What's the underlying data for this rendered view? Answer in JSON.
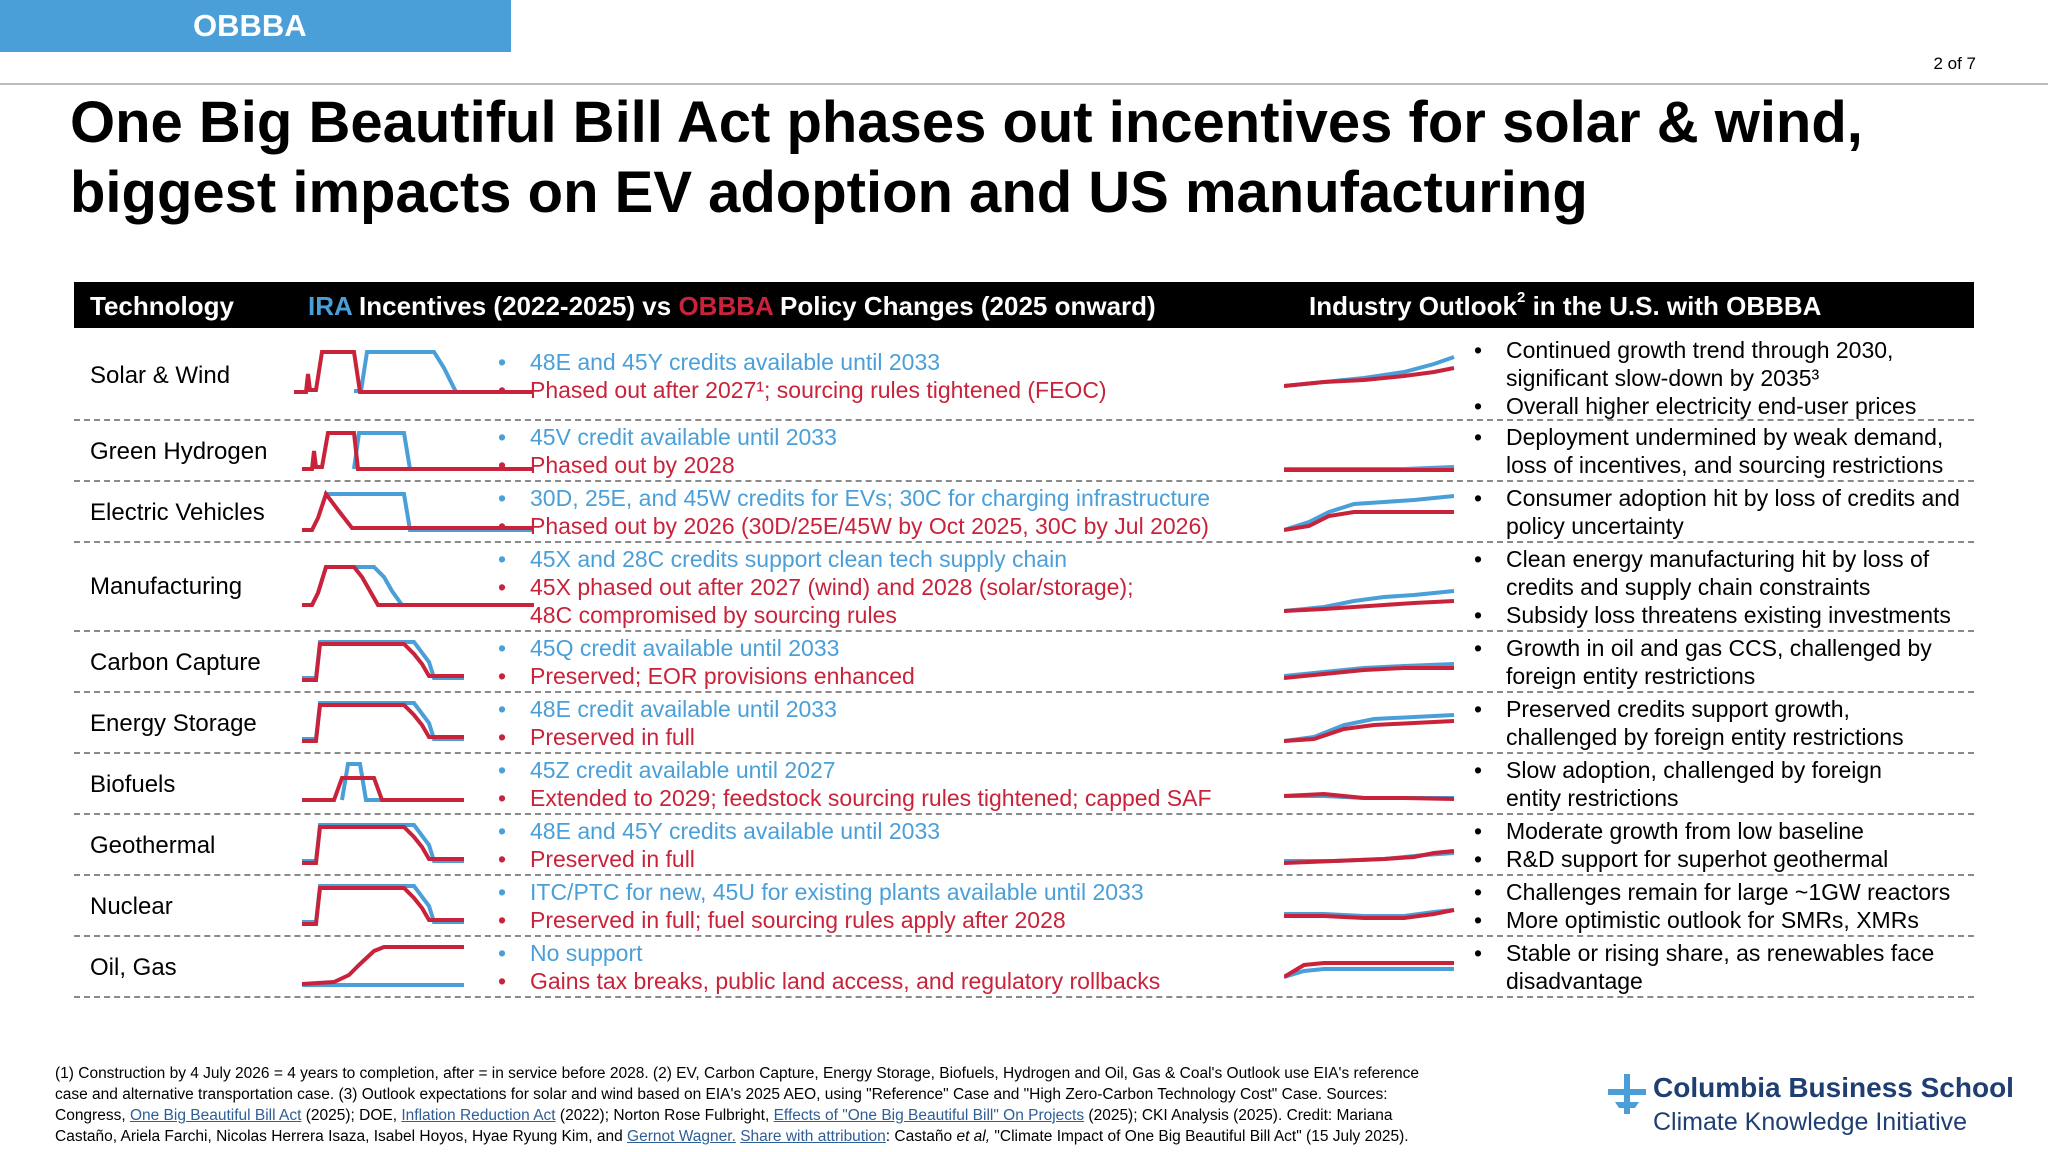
{
  "section_tag": "OBBBA",
  "page_number": "2 of 7",
  "title_line1": "One Big Beautiful Bill Act phases out incentives for solar & wind,",
  "title_line2": "biggest impacts on EV adoption and US manufacturing",
  "header": {
    "technology": "Technology",
    "ira": "IRA",
    "incentives": " Incentives (2022-2025) vs ",
    "obbba": "OBBBA",
    "policy_changes": " Policy Changes (2025 onward)",
    "outlook_pre": "Industry Outlook",
    "outlook_sup": "2",
    "outlook_post": " in the U.S. with OBBBA"
  },
  "colors": {
    "ira_blue": "#4a9fd8",
    "obbba_red": "#c8233a",
    "header_bg": "#000000",
    "tag_bg": "#4a9fd8",
    "logo_navy": "#1f3f73"
  },
  "bullet": "•",
  "rows": [
    {
      "tech": "Solar & Wind",
      "ira": "48E and 45Y credits available until 2033",
      "obbba": "Phased out after 2027¹; sourcing rules tightened (FEOC)",
      "outlook": [
        "Continued growth trend through 2030,",
        "significant slow-down by 2035³",
        "Overall higher electricity end-user prices"
      ]
    },
    {
      "tech": "Green Hydrogen",
      "ira": "45V credit available until 2033",
      "obbba": "Phased out by 2028",
      "outlook": [
        "Deployment undermined by weak demand,",
        "loss of incentives, and sourcing restrictions"
      ]
    },
    {
      "tech": "Electric Vehicles",
      "ira": "30D, 25E, and 45W credits for EVs; 30C for charging infrastructure",
      "obbba": "Phased out by 2026 (30D/25E/45W by Oct 2025, 30C by Jul 2026)",
      "outlook": [
        "Consumer adoption hit by loss of credits and",
        "policy uncertainty"
      ]
    },
    {
      "tech": "Manufacturing",
      "ira": "45X and 28C credits support clean tech supply chain",
      "obbba": "45X phased out after 2027 (wind) and 2028 (solar/storage);",
      "obbba2": "48C compromised by sourcing rules",
      "outlook": [
        "Clean energy manufacturing hit by loss of",
        "credits and supply chain constraints",
        "Subsidy loss threatens existing investments"
      ]
    },
    {
      "tech": "Carbon Capture",
      "ira": "45Q credit available until 2033",
      "obbba": "Preserved; EOR provisions enhanced",
      "outlook": [
        "Growth in oil and gas CCS, challenged by",
        "foreign entity restrictions"
      ]
    },
    {
      "tech": "Energy Storage",
      "ira": "48E credit available until 2033",
      "obbba": "Preserved in full",
      "outlook": [
        "Preserved credits support growth,",
        "challenged by foreign entity restrictions"
      ]
    },
    {
      "tech": "Biofuels",
      "ira": "45Z credit available until 2027",
      "obbba": "Extended to 2029; feedstock sourcing rules tightened; capped SAF",
      "outlook": [
        "Slow adoption, challenged by foreign",
        "entity restrictions"
      ]
    },
    {
      "tech": "Geothermal",
      "ira": "48E and 45Y credits available until 2033",
      "obbba": "Preserved in full",
      "outlook": [
        "Moderate growth from low baseline",
        "R&D support for superhot geothermal"
      ]
    },
    {
      "tech": "Nuclear",
      "ira": "ITC/PTC for new, 45U for existing plants available until 2033",
      "obbba": "Preserved in full; fuel sourcing rules apply after 2028",
      "outlook": [
        "Challenges remain for large ~1GW reactors",
        "More optimistic outlook for SMRs, XMRs"
      ]
    },
    {
      "tech": "Oil, Gas",
      "ira": "No support",
      "obbba": "Gains tax breaks, public land access, and regulatory rollbacks",
      "outlook": [
        "Stable or rising share, as renewables face",
        "disadvantage"
      ]
    }
  ],
  "footnote": {
    "line1": "(1) Construction by 4 July 2026 = 4 years to completion, after = in service before 2028. (2) EV, Carbon Capture, Energy Storage, Biofuels, Hydrogen and Oil, Gas & Coal's Outlook use EIA's reference",
    "line2": "case and alternative transportation case. (3) Outlook expectations for solar and wind based on EIA's 2025 AEO, using \"Reference\" Case and \"High Zero-Carbon Technology Cost\" Case. Sources:",
    "l3_a": "Congress, ",
    "l3_link1": "One Big Beautiful Bill Act",
    "l3_b": " (2025); DOE, ",
    "l3_link2": "Inflation Reduction Act",
    "l3_c": " (2022); Norton Rose Fulbright, ",
    "l3_link3": "Effects of \"One Big Beautiful Bill\" On Projects",
    "l3_d": " (2025); CKI Analysis (2025). Credit: Mariana",
    "l4_a": "Castaño, Ariela Farchi, Nicolas Herrera Isaza, Isabel Hoyos, Hyae Ryung Kim, and ",
    "l4_link1": "Gernot Wagner.",
    "l4_b": " ",
    "l4_link2": "Share with attribution",
    "l4_c": ": Castaño ",
    "l4_etal": "et al,",
    "l4_d": " \"Climate Impact of One Big Beautiful Bill Act\" (15 July 2025)."
  },
  "logo": {
    "line1": "Columbia Business School",
    "line2": "Climate Knowledge Initiative"
  }
}
